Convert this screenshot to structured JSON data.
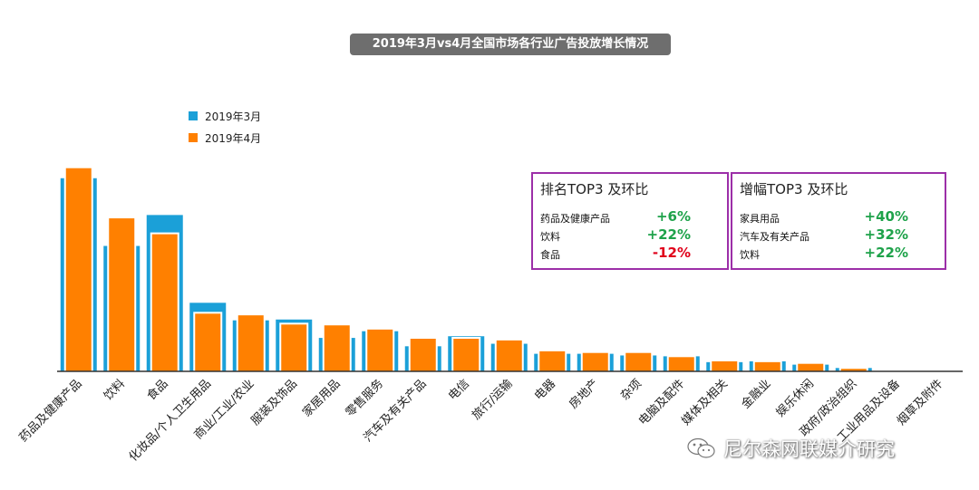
{
  "title": "2019年3月vs4月全国市场各行业广告投放增长情况",
  "legend": [
    {
      "label": "2019年3月",
      "color": "#1ba0d8"
    },
    {
      "label": "2019年4月",
      "color": "#ff8000"
    }
  ],
  "chart_data": {
    "type": "bar",
    "categories": [
      "药品及健康产品",
      "饮料",
      "食品",
      "化妆品/个人卫生用品",
      "商业/工业/农业",
      "服装及饰品",
      "家居用品",
      "零售服务",
      "汽车及有关产品",
      "电信",
      "旅行/运输",
      "电器",
      "房地产",
      "杂项",
      "电脑及配件",
      "媒体及相关",
      "金融业",
      "娱乐休闲",
      "政府/政治组织",
      "工业用品及设备",
      "烟草及附件"
    ],
    "series": [
      {
        "name": "2019年3月",
        "color": "#1ba0d8",
        "values": [
          231,
          150,
          187,
          82,
          61,
          62,
          40,
          48,
          30,
          42,
          33,
          21,
          21,
          19,
          18,
          11,
          12,
          8,
          4,
          0.5,
          0.2
        ]
      },
      {
        "name": "2019年4月",
        "color": "#ff8000",
        "values": [
          243,
          183,
          164,
          69,
          67,
          56,
          55,
          50,
          39,
          39,
          37,
          24,
          22,
          22,
          17,
          12,
          11,
          9,
          3,
          0.3,
          0.2
        ]
      }
    ],
    "ylim": [
      0,
      260
    ],
    "grid": false
  },
  "top_rank": {
    "title": "排名TOP3 及环比",
    "rows": [
      {
        "label": "药品及健康产品",
        "value": "+6%",
        "color": "#1ea24a"
      },
      {
        "label": "饮料",
        "value": "+22%",
        "color": "#1ea24a"
      },
      {
        "label": "食品",
        "value": "-12%",
        "color": "#e0001a"
      }
    ]
  },
  "top_growth": {
    "title": "增幅TOP3 及环比",
    "rows": [
      {
        "label": "家具用品",
        "value": "+40%",
        "color": "#1ea24a"
      },
      {
        "label": "汽车及有关产品",
        "value": "+32%",
        "color": "#1ea24a"
      },
      {
        "label": "饮料",
        "value": "+22%",
        "color": "#1ea24a"
      }
    ]
  },
  "watermark": "尼尔森网联媒介研究"
}
